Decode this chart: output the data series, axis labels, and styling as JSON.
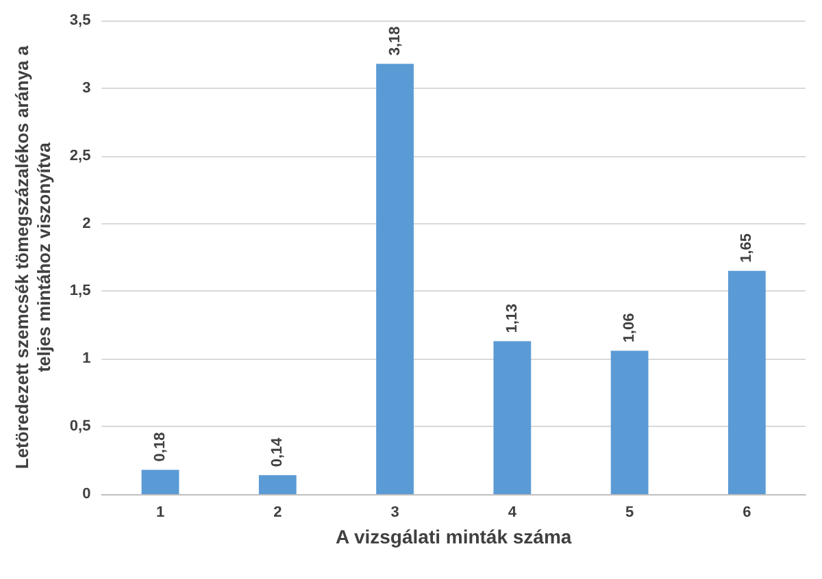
{
  "chart_data": {
    "type": "bar",
    "xlabel": "A vizsgálati minták száma",
    "ylabel": "Letöredezett szemcsék tömegszázalékos aránya a teljes mintához viszonyítva",
    "categories": [
      "1",
      "2",
      "3",
      "4",
      "5",
      "6"
    ],
    "values": [
      0.18,
      0.14,
      3.18,
      1.13,
      1.06,
      1.65
    ],
    "value_labels": [
      "0,18",
      "0,14",
      "3,18",
      "1,13",
      "1,06",
      "1,65"
    ],
    "color": "#5b9bd5",
    "ylim": [
      0,
      3.5
    ],
    "yticks": [
      0,
      {
        "value": 0.5,
        "label": "0,5"
      },
      1,
      {
        "value": 1.5,
        "label": "1,5"
      },
      2,
      {
        "value": 2.5,
        "label": "2,5"
      },
      3,
      {
        "value": 3.5,
        "label": "3,5"
      }
    ],
    "grid": "y"
  }
}
